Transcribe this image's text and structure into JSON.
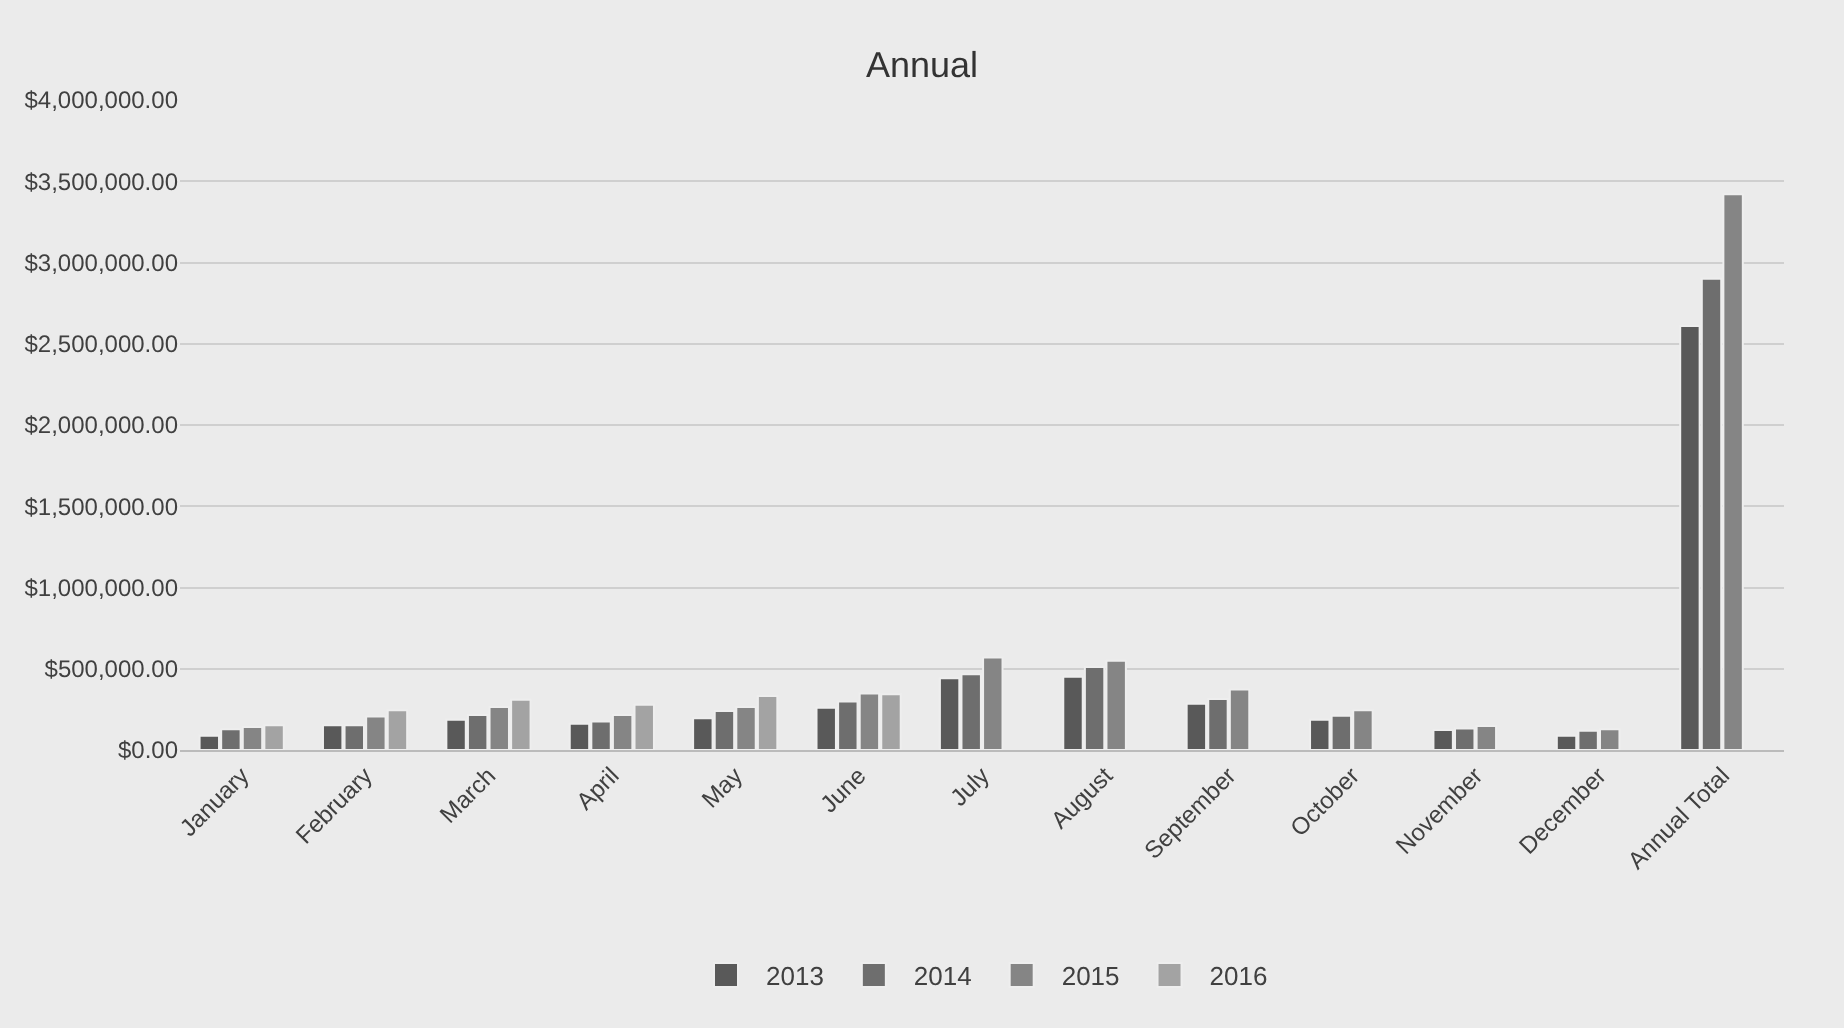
{
  "chart_data": {
    "type": "bar",
    "title": "Annual",
    "categories": [
      "January",
      "February",
      "March",
      "April",
      "May",
      "June",
      "July",
      "August",
      "September",
      "October",
      "November",
      "December",
      "Annual Total"
    ],
    "series": [
      {
        "name": "2013",
        "color": "#595959",
        "values": [
          88000,
          152000,
          186000,
          162000,
          196000,
          260000,
          441000,
          451000,
          284000,
          186000,
          123000,
          88000,
          2610000
        ]
      },
      {
        "name": "2014",
        "color": "#6e6e6e",
        "values": [
          127000,
          152000,
          216000,
          176000,
          240000,
          299000,
          466000,
          510000,
          314000,
          211000,
          132000,
          118000,
          2900000
        ]
      },
      {
        "name": "2015",
        "color": "#858585",
        "values": [
          142000,
          206000,
          265000,
          216000,
          265000,
          348000,
          569000,
          549000,
          372000,
          245000,
          147000,
          127000,
          3420000
        ]
      },
      {
        "name": "2016",
        "color": "#a3a3a3",
        "values": [
          152000,
          245000,
          309000,
          279000,
          333000,
          343000,
          null,
          null,
          null,
          null,
          null,
          null,
          null
        ]
      }
    ],
    "ylim": [
      0,
      4000000
    ],
    "yticks": [
      {
        "value": 0,
        "label": "$0.00"
      },
      {
        "value": 500000,
        "label": "$500,000.00"
      },
      {
        "value": 1000000,
        "label": "$1,000,000.00"
      },
      {
        "value": 1500000,
        "label": "$1,500,000.00"
      },
      {
        "value": 2000000,
        "label": "$2,000,000.00"
      },
      {
        "value": 2500000,
        "label": "$2,500,000.00"
      },
      {
        "value": 3000000,
        "label": "$3,000,000.00"
      },
      {
        "value": 3500000,
        "label": "$3,500,000.00"
      },
      {
        "value": 4000000,
        "label": "$4,000,000.00"
      }
    ],
    "grid": "y",
    "legend": "bottom"
  }
}
